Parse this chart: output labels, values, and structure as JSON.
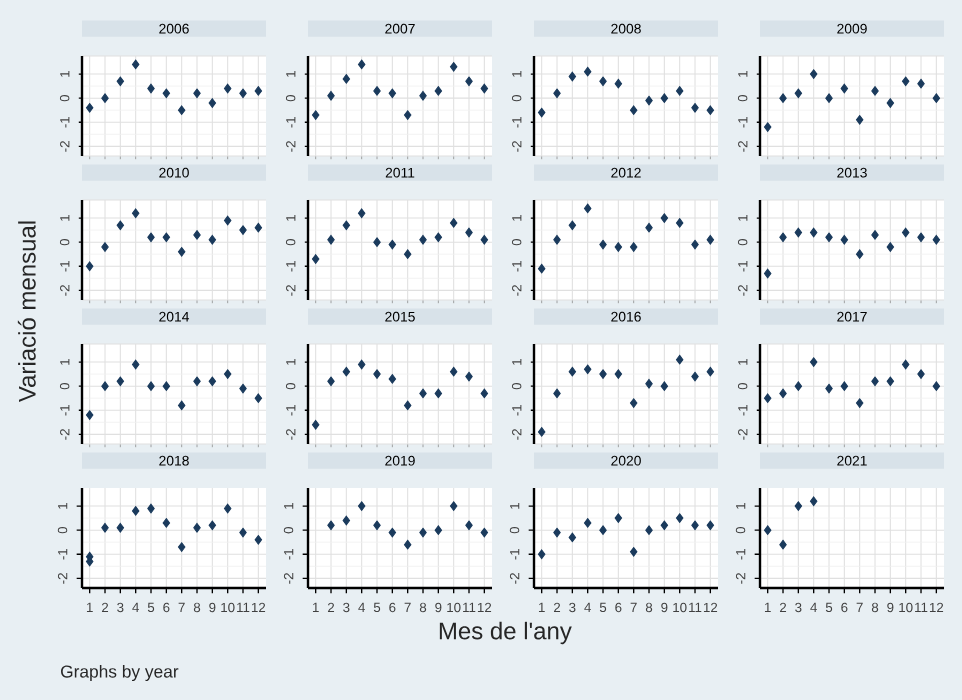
{
  "chart_data": [
    {
      "type": "scatter",
      "title": "2006",
      "ylabel": "Variació mensual",
      "x": [
        1,
        2,
        3,
        4,
        5,
        6,
        7,
        8,
        9,
        10,
        11,
        12
      ],
      "values": [
        -0.4,
        0,
        0.7,
        1.4,
        0.4,
        0.2,
        -0.5,
        0.2,
        -0.2,
        0.4,
        0.2,
        0.3
      ],
      "color": "#1a3a5c",
      "marker": "diamond",
      "grid": true,
      "xlim": [
        0.5,
        12.5
      ],
      "ylim": [
        -2.4,
        1.75
      ],
      "xticks": [
        1,
        2,
        3,
        4,
        5,
        6,
        7,
        8,
        9,
        10,
        11,
        12
      ],
      "yticks": [
        -2,
        -1,
        0,
        1
      ],
      "tick_labels": "y"
    },
    {
      "type": "scatter",
      "title": "2007",
      "x": [
        1,
        2,
        3,
        4,
        5,
        6,
        7,
        8,
        9,
        10,
        11,
        12
      ],
      "values": [
        -0.7,
        0.1,
        0.8,
        1.4,
        0.3,
        0.2,
        -0.7,
        0.1,
        0.3,
        1.3,
        0.7,
        0.4
      ],
      "color": "#1a3a5c",
      "marker": "diamond",
      "grid": true,
      "xlim": [
        0.5,
        12.5
      ],
      "ylim": [
        -2.4,
        1.75
      ],
      "xticks": [
        1,
        2,
        3,
        4,
        5,
        6,
        7,
        8,
        9,
        10,
        11,
        12
      ],
      "yticks": [
        -2,
        -1,
        0,
        1
      ],
      "tick_labels": "y"
    },
    {
      "type": "scatter",
      "title": "2008",
      "x": [
        1,
        2,
        3,
        4,
        5,
        6,
        7,
        8,
        9,
        10,
        11,
        12
      ],
      "values": [
        -0.6,
        0.2,
        0.9,
        1.1,
        0.7,
        0.6,
        -0.5,
        -0.1,
        0,
        0.3,
        -0.4,
        -0.5
      ],
      "color": "#1a3a5c",
      "marker": "diamond",
      "grid": true,
      "xlim": [
        0.5,
        12.5
      ],
      "ylim": [
        -2.4,
        1.75
      ],
      "xticks": [
        1,
        2,
        3,
        4,
        5,
        6,
        7,
        8,
        9,
        10,
        11,
        12
      ],
      "yticks": [
        -2,
        -1,
        0,
        1
      ],
      "tick_labels": "y"
    },
    {
      "type": "scatter",
      "title": "2009",
      "x": [
        1,
        2,
        3,
        4,
        5,
        6,
        7,
        8,
        9,
        10,
        11,
        12
      ],
      "values": [
        -1.2,
        0,
        0.2,
        1.0,
        0,
        0.4,
        -0.9,
        0.3,
        -0.2,
        0.7,
        0.6,
        0
      ],
      "color": "#1a3a5c",
      "marker": "diamond",
      "grid": true,
      "xlim": [
        0.5,
        12.5
      ],
      "ylim": [
        -2.4,
        1.75
      ],
      "xticks": [
        1,
        2,
        3,
        4,
        5,
        6,
        7,
        8,
        9,
        10,
        11,
        12
      ],
      "yticks": [
        -2,
        -1,
        0,
        1
      ],
      "tick_labels": "y"
    },
    {
      "type": "scatter",
      "title": "2010",
      "x": [
        1,
        2,
        3,
        4,
        5,
        6,
        7,
        8,
        9,
        10,
        11,
        12
      ],
      "values": [
        -1.0,
        -0.2,
        0.7,
        1.2,
        0.2,
        0.2,
        -0.4,
        0.3,
        0.1,
        0.9,
        0.5,
        0.6
      ],
      "color": "#1a3a5c",
      "marker": "diamond",
      "grid": true,
      "xlim": [
        0.5,
        12.5
      ],
      "ylim": [
        -2.4,
        1.75
      ],
      "xticks": [
        1,
        2,
        3,
        4,
        5,
        6,
        7,
        8,
        9,
        10,
        11,
        12
      ],
      "yticks": [
        -2,
        -1,
        0,
        1
      ],
      "tick_labels": "y"
    },
    {
      "type": "scatter",
      "title": "2011",
      "x": [
        1,
        2,
        3,
        4,
        5,
        6,
        7,
        8,
        9,
        10,
        11,
        12
      ],
      "values": [
        -0.7,
        0.1,
        0.7,
        1.2,
        0,
        -0.1,
        -0.5,
        0.1,
        0.2,
        0.8,
        0.4,
        0.1
      ],
      "color": "#1a3a5c",
      "marker": "diamond",
      "grid": true,
      "xlim": [
        0.5,
        12.5
      ],
      "ylim": [
        -2.4,
        1.75
      ],
      "xticks": [
        1,
        2,
        3,
        4,
        5,
        6,
        7,
        8,
        9,
        10,
        11,
        12
      ],
      "yticks": [
        -2,
        -1,
        0,
        1
      ],
      "tick_labels": "y"
    },
    {
      "type": "scatter",
      "title": "2012",
      "x": [
        1,
        2,
        3,
        4,
        5,
        6,
        7,
        8,
        9,
        10,
        11,
        12
      ],
      "values": [
        -1.1,
        0.1,
        0.7,
        1.4,
        -0.1,
        -0.2,
        -0.2,
        0.6,
        1.0,
        0.8,
        -0.1,
        0.1
      ],
      "color": "#1a3a5c",
      "marker": "diamond",
      "grid": true,
      "xlim": [
        0.5,
        12.5
      ],
      "ylim": [
        -2.4,
        1.75
      ],
      "xticks": [
        1,
        2,
        3,
        4,
        5,
        6,
        7,
        8,
        9,
        10,
        11,
        12
      ],
      "yticks": [
        -2,
        -1,
        0,
        1
      ],
      "tick_labels": "y"
    },
    {
      "type": "scatter",
      "title": "2013",
      "x": [
        1,
        2,
        3,
        4,
        5,
        6,
        7,
        8,
        9,
        10,
        11,
        12
      ],
      "values": [
        -1.3,
        0.2,
        0.4,
        0.4,
        0.2,
        0.1,
        -0.5,
        0.3,
        -0.2,
        0.4,
        0.2,
        0.1
      ],
      "color": "#1a3a5c",
      "marker": "diamond",
      "grid": true,
      "xlim": [
        0.5,
        12.5
      ],
      "ylim": [
        -2.4,
        1.75
      ],
      "xticks": [
        1,
        2,
        3,
        4,
        5,
        6,
        7,
        8,
        9,
        10,
        11,
        12
      ],
      "yticks": [
        -2,
        -1,
        0,
        1
      ],
      "tick_labels": "y"
    },
    {
      "type": "scatter",
      "title": "2014",
      "x": [
        1,
        2,
        3,
        4,
        5,
        6,
        7,
        8,
        9,
        10,
        11,
        12
      ],
      "values": [
        -1.2,
        0,
        0.2,
        0.9,
        0,
        0,
        -0.8,
        0.2,
        0.2,
        0.5,
        -0.1,
        -0.5
      ],
      "color": "#1a3a5c",
      "marker": "diamond",
      "grid": true,
      "xlim": [
        0.5,
        12.5
      ],
      "ylim": [
        -2.4,
        1.75
      ],
      "xticks": [
        1,
        2,
        3,
        4,
        5,
        6,
        7,
        8,
        9,
        10,
        11,
        12
      ],
      "yticks": [
        -2,
        -1,
        0,
        1
      ],
      "tick_labels": "y"
    },
    {
      "type": "scatter",
      "title": "2015",
      "x": [
        1,
        2,
        3,
        4,
        5,
        6,
        7,
        8,
        9,
        10,
        11,
        12
      ],
      "values": [
        -1.6,
        0.2,
        0.6,
        0.9,
        0.5,
        0.3,
        -0.8,
        -0.3,
        -0.3,
        0.6,
        0.4,
        -0.3
      ],
      "color": "#1a3a5c",
      "marker": "diamond",
      "grid": true,
      "xlim": [
        0.5,
        12.5
      ],
      "ylim": [
        -2.4,
        1.75
      ],
      "xticks": [
        1,
        2,
        3,
        4,
        5,
        6,
        7,
        8,
        9,
        10,
        11,
        12
      ],
      "yticks": [
        -2,
        -1,
        0,
        1
      ],
      "tick_labels": "y"
    },
    {
      "type": "scatter",
      "title": "2016",
      "x": [
        1,
        2,
        3,
        4,
        5,
        6,
        7,
        8,
        9,
        10,
        11,
        12
      ],
      "values": [
        -1.9,
        -0.3,
        0.6,
        0.7,
        0.5,
        0.5,
        -0.7,
        0.1,
        0,
        1.1,
        0.4,
        0.6
      ],
      "color": "#1a3a5c",
      "marker": "diamond",
      "grid": true,
      "xlim": [
        0.5,
        12.5
      ],
      "ylim": [
        -2.4,
        1.75
      ],
      "xticks": [
        1,
        2,
        3,
        4,
        5,
        6,
        7,
        8,
        9,
        10,
        11,
        12
      ],
      "yticks": [
        -2,
        -1,
        0,
        1
      ],
      "tick_labels": "y"
    },
    {
      "type": "scatter",
      "title": "2017",
      "x": [
        1,
        2,
        3,
        4,
        5,
        6,
        7,
        8,
        9,
        10,
        11,
        12
      ],
      "values": [
        -0.5,
        -0.3,
        0,
        1.0,
        -0.1,
        0,
        -0.7,
        0.2,
        0.2,
        0.9,
        0.5,
        0
      ],
      "color": "#1a3a5c",
      "marker": "diamond",
      "grid": true,
      "xlim": [
        0.5,
        12.5
      ],
      "ylim": [
        -2.4,
        1.75
      ],
      "xticks": [
        1,
        2,
        3,
        4,
        5,
        6,
        7,
        8,
        9,
        10,
        11,
        12
      ],
      "yticks": [
        -2,
        -1,
        0,
        1
      ],
      "tick_labels": "y"
    },
    {
      "type": "scatter",
      "title": "2018",
      "annotations": [
        "Graphs by year"
      ],
      "x": [
        1,
        1,
        2,
        3,
        4,
        5,
        6,
        7,
        8,
        9,
        10,
        11,
        12
      ],
      "values": [
        -1.1,
        -1.3,
        0.1,
        0.1,
        0.8,
        0.9,
        0.3,
        -0.7,
        0.1,
        0.2,
        0.9,
        -0.1,
        -0.4
      ],
      "color": "#1a3a5c",
      "marker": "diamond",
      "grid": true,
      "xlim": [
        0.5,
        12.5
      ],
      "ylim": [
        -2.4,
        1.75
      ],
      "xticks": [
        1,
        2,
        3,
        4,
        5,
        6,
        7,
        8,
        9,
        10,
        11,
        12
      ],
      "yticks": [
        -2,
        -1,
        0,
        1
      ]
    },
    {
      "type": "scatter",
      "title": "2019",
      "xlabel": "Mes de l'any",
      "x": [
        2,
        3,
        4,
        5,
        6,
        7,
        8,
        9,
        10,
        11,
        12
      ],
      "values": [
        0.2,
        0.4,
        1.0,
        0.2,
        -0.1,
        -0.6,
        -0.1,
        0,
        1.0,
        0.2,
        -0.1
      ],
      "color": "#1a3a5c",
      "marker": "diamond",
      "grid": true,
      "xlim": [
        0.5,
        12.5
      ],
      "ylim": [
        -2.4,
        1.75
      ],
      "xticks": [
        1,
        2,
        3,
        4,
        5,
        6,
        7,
        8,
        9,
        10,
        11,
        12
      ],
      "yticks": [
        -2,
        -1,
        0,
        1
      ]
    },
    {
      "type": "scatter",
      "title": "2020",
      "x": [
        1,
        2,
        3,
        4,
        5,
        6,
        7,
        8,
        9,
        10,
        11,
        12
      ],
      "values": [
        -1.0,
        -0.1,
        -0.3,
        0.3,
        0,
        0.5,
        -0.9,
        0,
        0.2,
        0.5,
        0.2,
        0.2
      ],
      "color": "#1a3a5c",
      "marker": "diamond",
      "grid": true,
      "xlim": [
        0.5,
        12.5
      ],
      "ylim": [
        -2.4,
        1.75
      ],
      "xticks": [
        1,
        2,
        3,
        4,
        5,
        6,
        7,
        8,
        9,
        10,
        11,
        12
      ],
      "yticks": [
        -2,
        -1,
        0,
        1
      ]
    },
    {
      "type": "scatter",
      "title": "2021",
      "x": [
        1,
        2,
        3,
        4
      ],
      "values": [
        0,
        -0.6,
        1.0,
        1.2
      ],
      "color": "#1a3a5c",
      "marker": "diamond",
      "grid": true,
      "xlim": [
        0.5,
        12.5
      ],
      "ylim": [
        -2.4,
        1.75
      ],
      "xticks": [
        1,
        2,
        3,
        4,
        5,
        6,
        7,
        8,
        9,
        10,
        11,
        12
      ],
      "yticks": [
        -2,
        -1,
        0,
        1
      ]
    }
  ]
}
